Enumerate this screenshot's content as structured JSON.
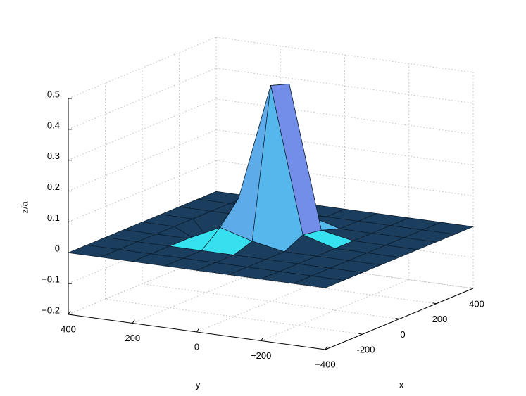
{
  "chart_data": {
    "type": "surface",
    "xlabel": "x",
    "ylabel": "y",
    "zlabel": "z/a",
    "xlim": [
      -400,
      400
    ],
    "ylim": [
      -400,
      400
    ],
    "zlim": [
      -0.2,
      0.5
    ],
    "xticks": [
      -200,
      0,
      200,
      {
        "value": 400,
        "label": "400"
      }
    ],
    "yticks": [
      {
        "value": -400,
        "label": "−400"
      },
      {
        "value": -200,
        "label": "−200"
      },
      0,
      200,
      400
    ],
    "zticks": [
      {
        "value": -0.2,
        "label": "−0.2"
      },
      {
        "value": -0.1,
        "label": "−0.1"
      },
      0,
      0.1,
      0.2,
      0.3,
      0.4,
      0.5
    ],
    "grid": true,
    "colormap": [
      "#33e6f0",
      "#b03ce0"
    ],
    "base_color": "#1b3d5e",
    "x": [
      -400,
      -300,
      -200,
      -100,
      0,
      100,
      200,
      300,
      400
    ],
    "y": [
      -400,
      -300,
      -200,
      -100,
      0,
      100,
      200,
      300,
      400
    ],
    "z": [
      [
        0,
        0,
        0,
        0,
        0,
        0,
        0,
        0,
        0
      ],
      [
        0,
        0,
        0,
        0,
        0,
        0,
        0,
        0,
        0
      ],
      [
        0,
        0,
        0,
        0,
        0,
        0,
        0,
        0,
        0
      ],
      [
        0,
        0,
        0,
        0,
        0.02,
        0.05,
        0,
        0,
        0
      ],
      [
        0,
        0,
        0,
        0.03,
        0.5,
        0.12,
        -0.05,
        0,
        0
      ],
      [
        0,
        0,
        0,
        0.02,
        0.48,
        0.2,
        -0.12,
        0,
        0
      ],
      [
        0,
        0,
        0,
        0,
        0.03,
        0.02,
        0,
        0,
        0
      ],
      [
        0,
        0,
        0,
        0,
        0,
        0,
        0,
        0,
        0
      ],
      [
        0,
        0,
        0,
        0,
        0,
        0,
        0,
        0,
        0
      ]
    ]
  }
}
